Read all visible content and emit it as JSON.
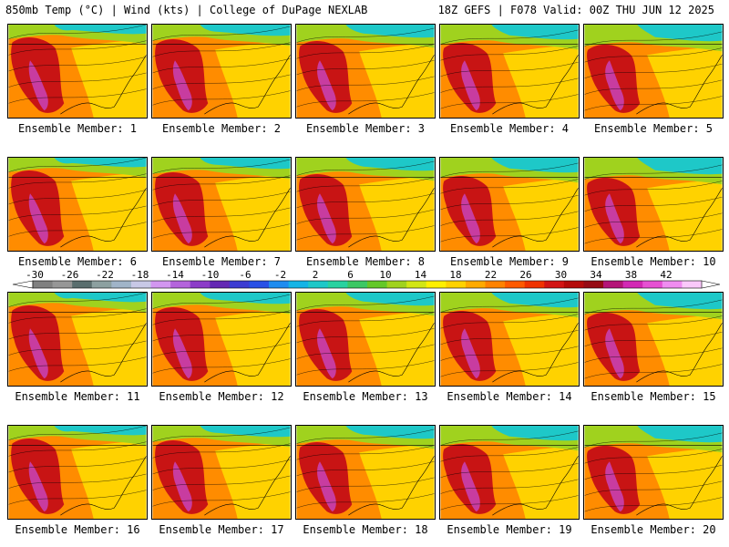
{
  "header": {
    "left": "850mb Temp (°C) | Wind (kts) | College of DuPage NEXLAB",
    "right": "18Z GEFS | F078 Valid: 00Z THU JUN 12 2025"
  },
  "panels": [
    "Ensemble Member: 1",
    "Ensemble Member: 2",
    "Ensemble Member: 3",
    "Ensemble Member: 4",
    "Ensemble Member: 5",
    "Ensemble Member: 6",
    "Ensemble Member: 7",
    "Ensemble Member: 8",
    "Ensemble Member: 9",
    "Ensemble Member: 10",
    "Ensemble Member: 11",
    "Ensemble Member: 12",
    "Ensemble Member: 13",
    "Ensemble Member: 14",
    "Ensemble Member: 15",
    "Ensemble Member: 16",
    "Ensemble Member: 17",
    "Ensemble Member: 18",
    "Ensemble Member: 19",
    "Ensemble Member: 20"
  ],
  "colorbar": {
    "labels": [
      "-30",
      "-26",
      "-22",
      "-18",
      "-14",
      "-10",
      "-6",
      "-2",
      "2",
      "6",
      "10",
      "14",
      "18",
      "22",
      "26",
      "30",
      "34",
      "38",
      "42"
    ],
    "colors": [
      "#808080",
      "#969696",
      "#5a6e6e",
      "#8ca0a0",
      "#a0b4c8",
      "#c8c8e6",
      "#d296f0",
      "#b464dc",
      "#8c3cc8",
      "#6428b4",
      "#3c3cd2",
      "#2850e6",
      "#1e8cf0",
      "#14b4e6",
      "#1ec8c8",
      "#28d2a0",
      "#3cc864",
      "#64c828",
      "#a0d21e",
      "#d2e614",
      "#fff000",
      "#ffd200",
      "#ffaa00",
      "#ff8200",
      "#ff5a00",
      "#f03200",
      "#d21414",
      "#b40a0a",
      "#960a14",
      "#b41478",
      "#d228b4",
      "#e650d2",
      "#f08cf0",
      "#fac8fa"
    ]
  },
  "colors": {
    "hot": "#c81414",
    "very_hot": "#c83ca0",
    "warm": "#ff8c00",
    "mild": "#ffd200",
    "cool": "#a0d21e",
    "cold": "#1ec8c8"
  }
}
